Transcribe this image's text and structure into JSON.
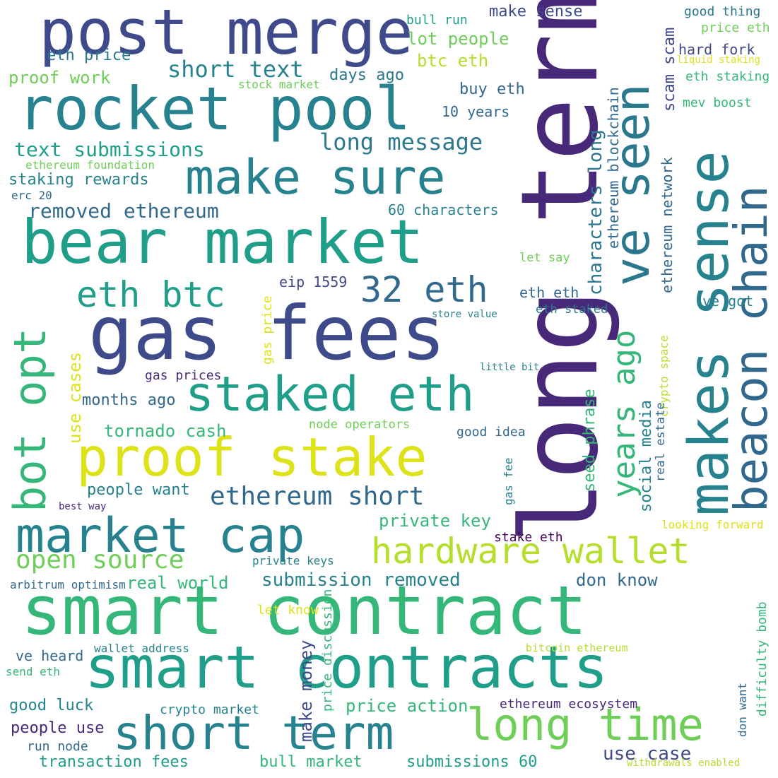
{
  "palette": {
    "purple": "#482878",
    "indigo": "#3e4a89",
    "blue": "#31688e",
    "teal": "#26828e",
    "green": "#1f9e89",
    "mint": "#35b779",
    "lime": "#6ece58",
    "yellowgreen": "#b5de2b",
    "yellow": "#dde318",
    "darkpurple": "#440154"
  },
  "words": [
    {
      "text": "long term",
      "color": "#482878"
    },
    {
      "text": "post merge",
      "color": "#3e4a89"
    },
    {
      "text": "rocket pool",
      "color": "#26828e"
    },
    {
      "text": "bear market",
      "color": "#1f9e89"
    },
    {
      "text": "gas fees",
      "color": "#3e4a89"
    },
    {
      "text": "smart contract",
      "color": "#35b779"
    },
    {
      "text": "smart contracts",
      "color": "#1f9e89"
    },
    {
      "text": "make sure",
      "color": "#26828e"
    },
    {
      "text": "ve seen",
      "color": "#2a788e"
    },
    {
      "text": "makes sense",
      "color": "#26828e"
    },
    {
      "text": "beacon chain",
      "color": "#31688e"
    },
    {
      "text": "proof stake",
      "color": "#dde318"
    },
    {
      "text": "staked eth",
      "color": "#1f9e89"
    },
    {
      "text": "market cap",
      "color": "#26828e"
    },
    {
      "text": "short term",
      "color": "#26828e"
    },
    {
      "text": "long time",
      "color": "#6ece58"
    },
    {
      "text": "hardware wallet",
      "color": "#b5de2b"
    },
    {
      "text": "bot opt",
      "color": "#35b779"
    },
    {
      "text": "eth btc",
      "color": "#1f9e89"
    },
    {
      "text": "32 eth",
      "color": "#31688e"
    },
    {
      "text": "years ago",
      "color": "#35b779"
    },
    {
      "text": "open source",
      "color": "#6ece58"
    },
    {
      "text": "ethereum short",
      "color": "#31688e"
    },
    {
      "text": "short text",
      "color": "#26828e"
    },
    {
      "text": "text submissions",
      "color": "#1f9e89"
    },
    {
      "text": "long message",
      "color": "#2a788e"
    },
    {
      "text": "removed ethereum",
      "color": "#31688e"
    },
    {
      "text": "characters long",
      "color": "#2a788e"
    },
    {
      "text": "submission removed",
      "color": "#26828e"
    },
    {
      "text": "make sense",
      "color": "#3e4a89"
    },
    {
      "text": "lot people",
      "color": "#6ece58"
    },
    {
      "text": "btc eth",
      "color": "#b5de2b"
    },
    {
      "text": "buy eth",
      "color": "#31688e"
    },
    {
      "text": "10 years",
      "color": "#31688e"
    },
    {
      "text": "eth price",
      "color": "#2a788e"
    },
    {
      "text": "proof work",
      "color": "#6ece58"
    },
    {
      "text": "days ago",
      "color": "#2a788e"
    },
    {
      "text": "stock market",
      "color": "#6ece58"
    },
    {
      "text": "bull run",
      "color": "#1f9e89"
    },
    {
      "text": "good thing",
      "color": "#2a788e"
    },
    {
      "text": "price eth",
      "color": "#6ece58"
    },
    {
      "text": "hard fork",
      "color": "#3e4a89"
    },
    {
      "text": "liquid staking",
      "color": "#dde318"
    },
    {
      "text": "eth staking",
      "color": "#35b779"
    },
    {
      "text": "mev boost",
      "color": "#35b779"
    },
    {
      "text": "scam scam",
      "color": "#3e4a89"
    },
    {
      "text": "ethereum network",
      "color": "#31688e"
    },
    {
      "text": "ethereum blockchain",
      "color": "#31688e"
    },
    {
      "text": "ethereum foundation",
      "color": "#6ece58"
    },
    {
      "text": "staking rewards",
      "color": "#26828e"
    },
    {
      "text": "erc 20",
      "color": "#31688e"
    },
    {
      "text": "60 characters",
      "color": "#26828e"
    },
    {
      "text": "let say",
      "color": "#6ece58"
    },
    {
      "text": "eip 1559",
      "color": "#3e4a89"
    },
    {
      "text": "eth eth",
      "color": "#31688e"
    },
    {
      "text": "eth staked",
      "color": "#2a788e"
    },
    {
      "text": "ve got",
      "color": "#26828e"
    },
    {
      "text": "store value",
      "color": "#26828e"
    },
    {
      "text": "gas price",
      "color": "#dde318"
    },
    {
      "text": "use cases",
      "color": "#dde318"
    },
    {
      "text": "gas prices",
      "color": "#482878"
    },
    {
      "text": "little bit",
      "color": "#26828e"
    },
    {
      "text": "crypto space",
      "color": "#b5de2b"
    },
    {
      "text": "months ago",
      "color": "#31688e"
    },
    {
      "text": "tornado cash",
      "color": "#35b779"
    },
    {
      "text": "node operators",
      "color": "#6ece58"
    },
    {
      "text": "good idea",
      "color": "#31688e"
    },
    {
      "text": "seed phrase",
      "color": "#35b779"
    },
    {
      "text": "social media",
      "color": "#26828e"
    },
    {
      "text": "real estate",
      "color": "#31688e"
    },
    {
      "text": "people want",
      "color": "#26828e"
    },
    {
      "text": "best way",
      "color": "#482878"
    },
    {
      "text": "gas fee",
      "color": "#26828e"
    },
    {
      "text": "private key",
      "color": "#35b779"
    },
    {
      "text": "stake eth",
      "color": "#440154"
    },
    {
      "text": "looking forward",
      "color": "#dde318"
    },
    {
      "text": "private keys",
      "color": "#26828e"
    },
    {
      "text": "real world",
      "color": "#35b779"
    },
    {
      "text": "arbitrum optimism",
      "color": "#31688e"
    },
    {
      "text": "don know",
      "color": "#31688e"
    },
    {
      "text": "let know",
      "color": "#dde318"
    },
    {
      "text": "price discussion",
      "color": "#35b779"
    },
    {
      "text": "make money",
      "color": "#3e4a89"
    },
    {
      "text": "difficulty bomb",
      "color": "#35b779"
    },
    {
      "text": "don want",
      "color": "#31688e"
    },
    {
      "text": "wallet address",
      "color": "#26828e"
    },
    {
      "text": "bitcoin ethereum",
      "color": "#b5de2b"
    },
    {
      "text": "ve heard",
      "color": "#31688e"
    },
    {
      "text": "send eth",
      "color": "#35b779"
    },
    {
      "text": "good luck",
      "color": "#26828e"
    },
    {
      "text": "crypto market",
      "color": "#26828e"
    },
    {
      "text": "price action",
      "color": "#35b779"
    },
    {
      "text": "ethereum ecosystem",
      "color": "#482878"
    },
    {
      "text": "people use",
      "color": "#482878"
    },
    {
      "text": "use case",
      "color": "#3e4a89"
    },
    {
      "text": "run node",
      "color": "#31688e"
    },
    {
      "text": "transaction fees",
      "color": "#1f9e89"
    },
    {
      "text": "bull market",
      "color": "#35b779"
    },
    {
      "text": "submissions 60",
      "color": "#1f9e89"
    },
    {
      "text": "withdrawals enabled",
      "color": "#b5de2b"
    }
  ]
}
